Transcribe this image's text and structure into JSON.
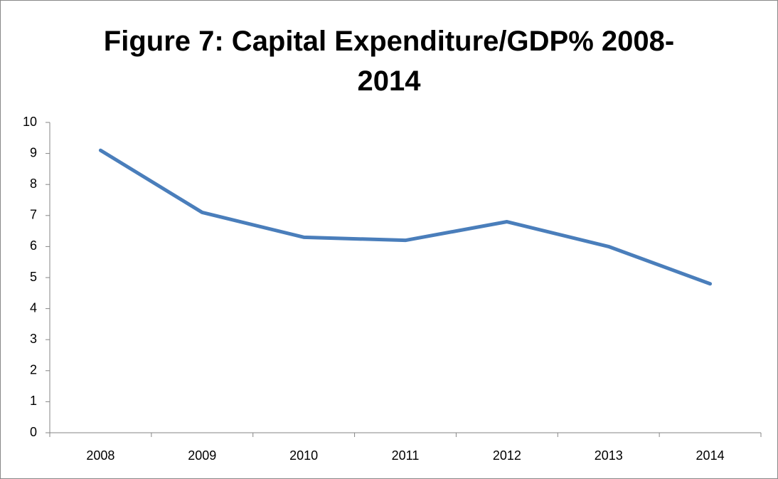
{
  "chart_data": {
    "type": "line",
    "title": "Figure 7: Capital Expenditure/GDP% 2008-2014",
    "categories": [
      "2008",
      "2009",
      "2010",
      "2011",
      "2012",
      "2013",
      "2014"
    ],
    "values": [
      9.1,
      7.1,
      6.3,
      6.2,
      6.8,
      6.0,
      4.8
    ],
    "color": "#4a7ebb",
    "ylim": [
      0,
      10
    ],
    "yticks": [
      0,
      1,
      2,
      3,
      4,
      5,
      6,
      7,
      8,
      9,
      10
    ],
    "grid": false
  }
}
